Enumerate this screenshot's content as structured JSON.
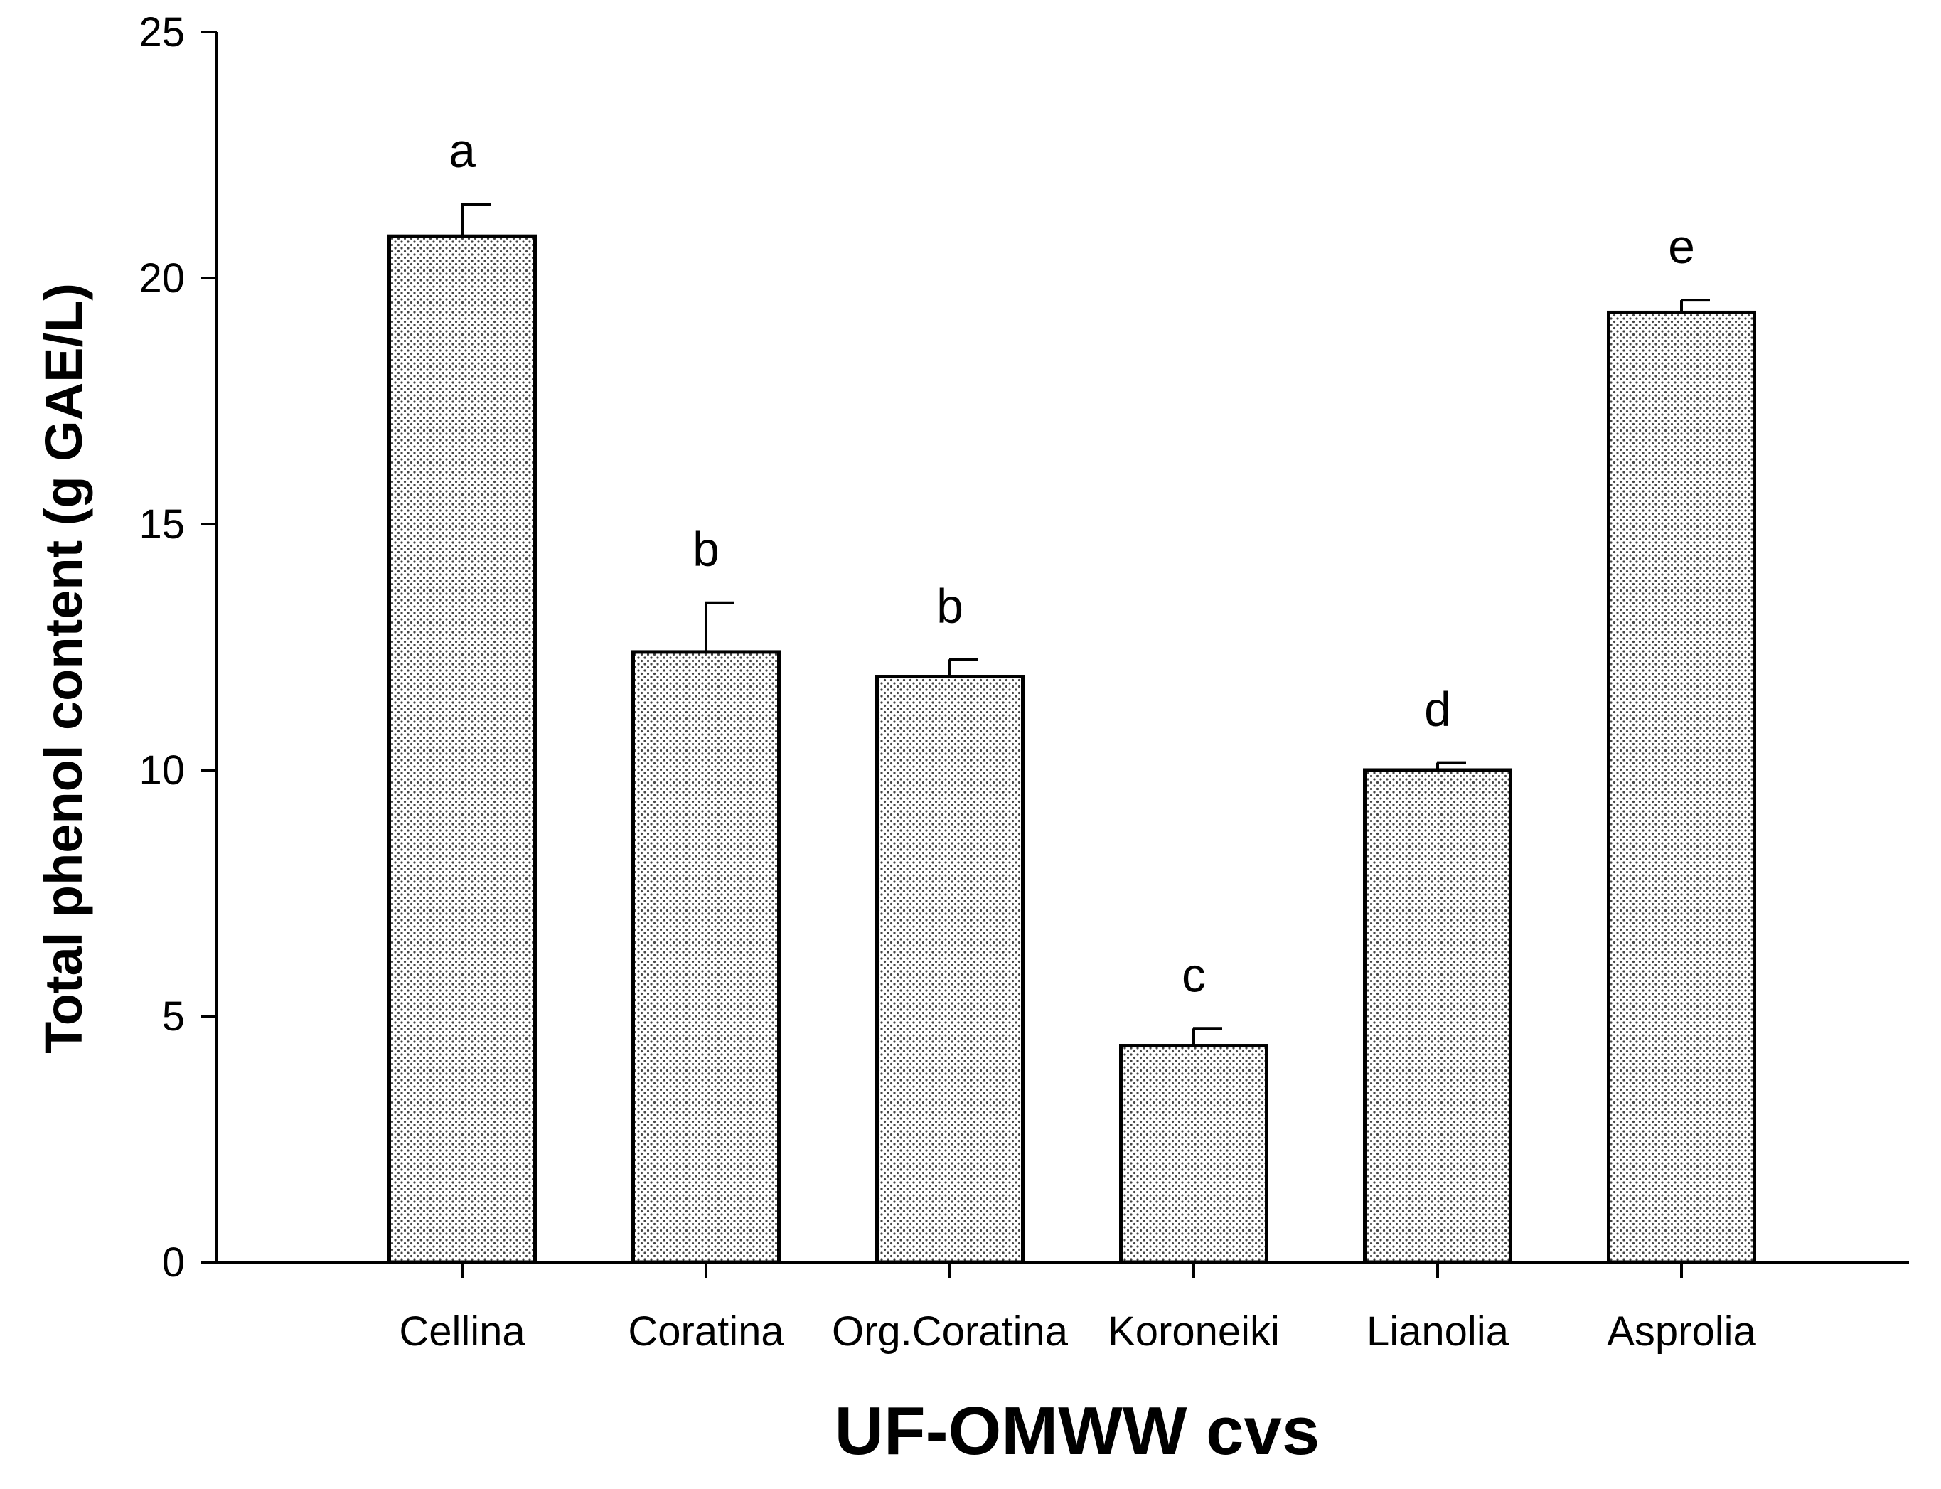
{
  "chart_data": {
    "type": "bar",
    "title": "",
    "xlabel": "UF-OMWW cvs",
    "ylabel": "Total phenol content (g GAE/L)",
    "ylim": [
      0,
      25
    ],
    "yticks": [
      0,
      5,
      10,
      15,
      20,
      25
    ],
    "grid": false,
    "legend": "none",
    "categories": [
      "Cellina",
      "Coratina",
      "Org.Coratina",
      "Koroneiki",
      "Lianolia",
      "Asprolia"
    ],
    "values": [
      20.85,
      12.4,
      11.9,
      4.4,
      10.0,
      19.3
    ],
    "errors": [
      0.65,
      1.0,
      0.35,
      0.35,
      0.15,
      0.25
    ],
    "significance_labels": [
      "a",
      "b",
      "b",
      "c",
      "d",
      "e"
    ],
    "bar_fill": "dotted stipple",
    "colors": {
      "bar_fill": "#ffffff",
      "bar_dots": "#444444",
      "bar_stroke": "#000000",
      "axis": "#000000"
    }
  }
}
